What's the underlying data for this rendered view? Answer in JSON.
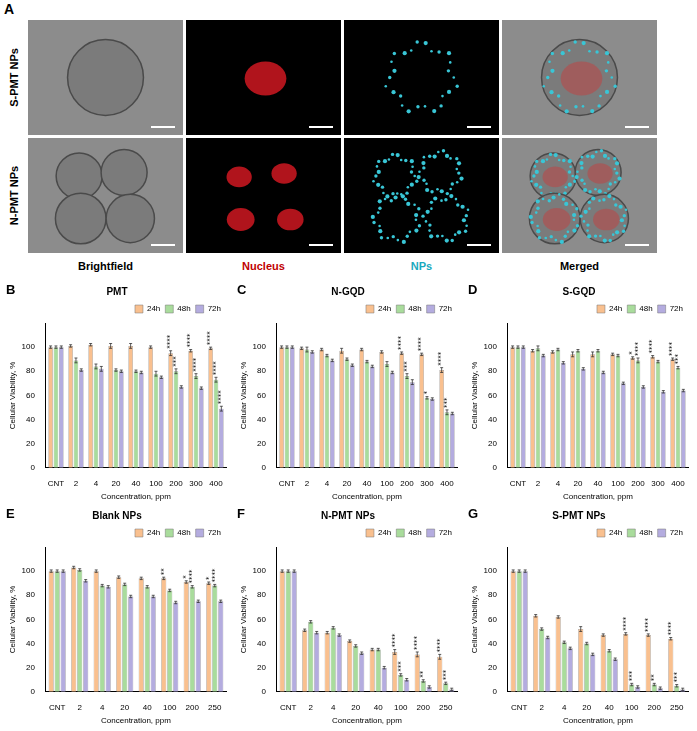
{
  "panel_a": {
    "label": "A",
    "rows": [
      "S-PMT NPs",
      "N-PMT NPs"
    ],
    "columns": [
      "Brightfield",
      "Nucleus",
      "NPs",
      "Merged"
    ]
  },
  "chart_data": [
    {
      "type": "bar",
      "label": "B",
      "title": "PMT",
      "x_label": "Concentration, ppm",
      "y_label": "Cellular Viability, %",
      "categories": [
        "CNT",
        "2",
        "4",
        "20",
        "40",
        "100",
        "200",
        "300",
        "400"
      ],
      "ylim": [
        0,
        120
      ],
      "yticks": [
        0,
        20,
        40,
        60,
        80,
        100
      ],
      "grid": false,
      "legend": "top",
      "series": [
        {
          "name": "24h",
          "color": "#f9c08f",
          "values": [
            100,
            101,
            102,
            101,
            101,
            100,
            95,
            97,
            99
          ],
          "errors": [
            1,
            1,
            1,
            2,
            2,
            1,
            2,
            1,
            1
          ],
          "significance": [
            null,
            null,
            null,
            null,
            null,
            null,
            "****",
            "****",
            "****"
          ]
        },
        {
          "name": "48h",
          "color": "#a9dc9c",
          "values": [
            100,
            89,
            84,
            81,
            80,
            78,
            80,
            76,
            73
          ],
          "errors": [
            1,
            2,
            2,
            1,
            1,
            2,
            2,
            2,
            2
          ],
          "significance": [
            null,
            null,
            null,
            null,
            null,
            null,
            "***",
            "****",
            "****"
          ]
        },
        {
          "name": "72h",
          "color": "#b4acdf",
          "values": [
            100,
            81,
            82,
            80,
            79,
            75,
            67,
            66,
            49
          ],
          "errors": [
            1,
            1,
            2,
            1,
            1,
            1,
            1,
            1,
            2
          ],
          "significance": [
            null,
            null,
            null,
            null,
            null,
            null,
            null,
            null,
            "****"
          ]
        }
      ]
    },
    {
      "type": "bar",
      "label": "C",
      "title": "N-GQD",
      "x_label": "Concentration, ppm",
      "y_label": "Cellular Viability, %",
      "categories": [
        "CNT",
        "2",
        "4",
        "20",
        "40",
        "100",
        "200",
        "300",
        "400"
      ],
      "ylim": [
        0,
        120
      ],
      "yticks": [
        0,
        20,
        40,
        60,
        80,
        100
      ],
      "grid": false,
      "legend": "top",
      "series": [
        {
          "name": "24h",
          "color": "#f9c08f",
          "values": [
            100,
            99,
            98,
            97,
            98,
            96,
            95,
            94,
            81
          ],
          "errors": [
            1,
            1,
            1,
            2,
            1,
            1,
            1,
            1,
            2
          ],
          "significance": [
            null,
            null,
            null,
            null,
            null,
            null,
            "****",
            "****",
            "****"
          ]
        },
        {
          "name": "48h",
          "color": "#a9dc9c",
          "values": [
            100,
            98,
            93,
            90,
            88,
            86,
            76,
            58,
            46
          ],
          "errors": [
            1,
            2,
            1,
            1,
            1,
            2,
            2,
            1,
            2
          ],
          "significance": [
            null,
            null,
            null,
            null,
            null,
            null,
            "***",
            "*",
            "***"
          ]
        },
        {
          "name": "72h",
          "color": "#b4acdf",
          "values": [
            100,
            96,
            89,
            85,
            84,
            79,
            71,
            57,
            45
          ],
          "errors": [
            1,
            1,
            1,
            1,
            1,
            1,
            2,
            1,
            1
          ],
          "significance": [
            null,
            null,
            null,
            null,
            null,
            null,
            null,
            null,
            null
          ]
        }
      ]
    },
    {
      "type": "bar",
      "label": "D",
      "title": "S-GQD",
      "x_label": "Concentration, ppm",
      "y_label": "Cellular Viability, %",
      "categories": [
        "CNT",
        "2",
        "4",
        "20",
        "40",
        "100",
        "200",
        "300",
        "400"
      ],
      "ylim": [
        0,
        120
      ],
      "yticks": [
        0,
        20,
        40,
        60,
        80,
        100
      ],
      "grid": false,
      "legend": "top",
      "series": [
        {
          "name": "24h",
          "color": "#f9c08f",
          "values": [
            100,
            97,
            96,
            94,
            94,
            94,
            91,
            92,
            90
          ],
          "errors": [
            1,
            1,
            1,
            2,
            2,
            1,
            1,
            1,
            1
          ],
          "significance": [
            null,
            null,
            null,
            null,
            null,
            null,
            "*",
            "****",
            "****"
          ]
        },
        {
          "name": "48h",
          "color": "#a9dc9c",
          "values": [
            100,
            99,
            98,
            97,
            97,
            93,
            89,
            88,
            83
          ],
          "errors": [
            1,
            2,
            1,
            1,
            1,
            1,
            2,
            1,
            1
          ],
          "significance": [
            null,
            null,
            null,
            null,
            null,
            null,
            "****",
            null,
            "***"
          ]
        },
        {
          "name": "72h",
          "color": "#b4acdf",
          "values": [
            100,
            93,
            87,
            82,
            79,
            70,
            67,
            63,
            64
          ],
          "errors": [
            1,
            1,
            1,
            1,
            1,
            1,
            1,
            1,
            1
          ],
          "significance": [
            null,
            null,
            null,
            null,
            null,
            null,
            null,
            null,
            null
          ]
        }
      ]
    },
    {
      "type": "bar",
      "label": "E",
      "title": "Blank NPs",
      "x_label": "Concentration, ppm",
      "y_label": "Cellular Viability, %",
      "categories": [
        "CNT",
        "2",
        "4",
        "20",
        "40",
        "100",
        "200",
        "250"
      ],
      "ylim": [
        0,
        120
      ],
      "yticks": [
        0,
        20,
        40,
        60,
        80,
        100
      ],
      "grid": false,
      "legend": "top",
      "series": [
        {
          "name": "24h",
          "color": "#f9c08f",
          "values": [
            100,
            103,
            100,
            95,
            94,
            94,
            91,
            90
          ],
          "errors": [
            1,
            1,
            1,
            1,
            1,
            1,
            1,
            1
          ],
          "significance": [
            null,
            null,
            null,
            null,
            null,
            "**",
            "*",
            "*"
          ]
        },
        {
          "name": "48h",
          "color": "#a9dc9c",
          "values": [
            100,
            101,
            88,
            89,
            87,
            84,
            87,
            88
          ],
          "errors": [
            1,
            1,
            1,
            1,
            1,
            1,
            1,
            1
          ],
          "significance": [
            null,
            null,
            null,
            null,
            null,
            null,
            "****",
            "****"
          ]
        },
        {
          "name": "72h",
          "color": "#b4acdf",
          "values": [
            100,
            92,
            87,
            79,
            79,
            74,
            75,
            75
          ],
          "errors": [
            1,
            1,
            1,
            1,
            1,
            1,
            1,
            1
          ],
          "significance": [
            null,
            null,
            null,
            null,
            null,
            null,
            null,
            null
          ]
        }
      ]
    },
    {
      "type": "bar",
      "label": "F",
      "title": "N-PMT NPs",
      "x_label": "Concentration, ppm",
      "y_label": "Cellular Viability, %",
      "categories": [
        "CNT",
        "2",
        "4",
        "20",
        "40",
        "100",
        "200",
        "250"
      ],
      "ylim": [
        0,
        120
      ],
      "yticks": [
        0,
        20,
        40,
        60,
        80,
        100
      ],
      "grid": false,
      "legend": "top",
      "series": [
        {
          "name": "24h",
          "color": "#f9c08f",
          "values": [
            100,
            51,
            49,
            42,
            35,
            33,
            31,
            29
          ],
          "errors": [
            1,
            1,
            1,
            1,
            1,
            2,
            2,
            2
          ],
          "significance": [
            null,
            null,
            null,
            null,
            null,
            "****",
            "****",
            "****"
          ]
        },
        {
          "name": "48h",
          "color": "#a9dc9c",
          "values": [
            100,
            58,
            53,
            38,
            35,
            14,
            9,
            7
          ],
          "errors": [
            1,
            1,
            1,
            1,
            1,
            1,
            1,
            1
          ],
          "significance": [
            null,
            null,
            null,
            null,
            null,
            "***",
            "**",
            "***"
          ]
        },
        {
          "name": "72h",
          "color": "#b4acdf",
          "values": [
            100,
            49,
            47,
            32,
            20,
            10,
            4,
            2
          ],
          "errors": [
            1,
            1,
            1,
            1,
            1,
            1,
            1,
            1
          ],
          "significance": [
            null,
            null,
            null,
            null,
            null,
            null,
            null,
            null
          ]
        }
      ]
    },
    {
      "type": "bar",
      "label": "G",
      "title": "S-PMT NPs",
      "x_label": "Concentration, ppm",
      "y_label": "Cellular Viability, %",
      "categories": [
        "CNT",
        "2",
        "4",
        "20",
        "40",
        "100",
        "200",
        "250"
      ],
      "ylim": [
        0,
        120
      ],
      "yticks": [
        0,
        20,
        40,
        60,
        80,
        100
      ],
      "grid": false,
      "legend": "top",
      "series": [
        {
          "name": "24h",
          "color": "#f9c08f",
          "values": [
            100,
            63,
            62,
            52,
            47,
            48,
            47,
            44
          ],
          "errors": [
            1,
            1,
            1,
            2,
            1,
            1,
            1,
            1
          ],
          "significance": [
            null,
            null,
            null,
            null,
            null,
            "****",
            "****",
            "****"
          ]
        },
        {
          "name": "48h",
          "color": "#a9dc9c",
          "values": [
            100,
            52,
            41,
            40,
            34,
            6,
            6,
            5
          ],
          "errors": [
            1,
            1,
            1,
            1,
            1,
            1,
            1,
            1
          ],
          "significance": [
            null,
            null,
            null,
            null,
            null,
            "***",
            "**",
            "***"
          ]
        },
        {
          "name": "72h",
          "color": "#b4acdf",
          "values": [
            100,
            45,
            36,
            31,
            27,
            4,
            3,
            2
          ],
          "errors": [
            1,
            1,
            1,
            1,
            1,
            1,
            1,
            1
          ],
          "significance": [
            null,
            null,
            null,
            null,
            null,
            null,
            null,
            null
          ]
        }
      ]
    }
  ]
}
